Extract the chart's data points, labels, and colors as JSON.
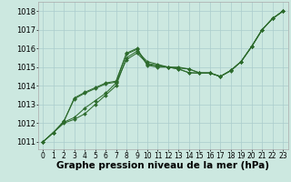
{
  "background_color": "#cce8e0",
  "grid_color": "#aacccc",
  "line_color": "#2d6b2d",
  "marker_color": "#2d6b2d",
  "xlabel": "Graphe pression niveau de la mer (hPa)",
  "xlabel_fontsize": 7.5,
  "ylabel_fontsize": 6,
  "tick_fontsize": 5.5,
  "xlim": [
    -0.5,
    23.5
  ],
  "ylim": [
    1010.6,
    1018.5
  ],
  "yticks": [
    1011,
    1012,
    1013,
    1014,
    1015,
    1016,
    1017,
    1018
  ],
  "xticks": [
    0,
    1,
    2,
    3,
    4,
    5,
    6,
    7,
    8,
    9,
    10,
    11,
    12,
    13,
    14,
    15,
    16,
    17,
    18,
    19,
    20,
    21,
    22,
    23
  ],
  "line1_x": [
    0,
    1,
    2,
    3,
    4,
    5,
    6,
    7,
    8,
    9,
    10,
    11,
    12,
    13,
    14,
    15,
    16,
    17,
    18,
    19,
    20,
    21,
    22,
    23
  ],
  "line1_y": [
    1011.0,
    1011.5,
    1012.0,
    1012.2,
    1012.5,
    1013.0,
    1013.5,
    1014.0,
    1015.5,
    1015.85,
    1015.3,
    1015.15,
    1015.0,
    1015.0,
    1014.9,
    1014.7,
    1014.7,
    1014.5,
    1014.8,
    1015.3,
    1016.1,
    1017.0,
    1017.6,
    1018.0
  ],
  "line2_x": [
    0,
    1,
    2,
    3,
    4,
    5,
    6,
    7,
    8,
    9,
    10,
    11,
    12,
    13,
    14,
    15,
    16,
    17,
    18,
    19,
    20,
    21,
    22,
    23
  ],
  "line2_y": [
    1011.0,
    1011.5,
    1012.05,
    1012.3,
    1012.8,
    1013.2,
    1013.6,
    1014.15,
    1015.4,
    1015.75,
    1015.2,
    1015.1,
    1015.0,
    1014.95,
    1014.9,
    1014.68,
    1014.68,
    1014.5,
    1014.82,
    1015.3,
    1016.1,
    1017.0,
    1017.6,
    1018.0
  ],
  "line3_x": [
    0,
    1,
    2,
    3,
    4,
    5,
    6,
    7,
    8,
    9,
    10,
    11,
    12,
    13,
    14,
    15,
    16,
    17,
    18,
    19,
    20,
    21,
    22,
    23
  ],
  "line3_y": [
    1011.0,
    1011.5,
    1012.1,
    1013.3,
    1013.6,
    1013.85,
    1014.1,
    1014.2,
    1015.7,
    1015.95,
    1015.1,
    1015.0,
    1015.0,
    1014.9,
    1014.7,
    1014.68,
    1014.68,
    1014.5,
    1014.82,
    1015.3,
    1016.1,
    1017.0,
    1017.6,
    1018.0
  ],
  "line4_x": [
    0,
    1,
    2,
    3,
    4,
    5,
    6,
    7,
    8,
    9,
    10,
    11,
    12,
    13,
    14,
    15,
    16,
    17,
    18,
    19,
    20,
    21,
    22,
    23
  ],
  "line4_y": [
    1011.0,
    1011.5,
    1012.1,
    1013.35,
    1013.65,
    1013.9,
    1014.15,
    1014.25,
    1015.75,
    1016.0,
    1015.15,
    1015.05,
    1015.0,
    1014.9,
    1014.7,
    1014.68,
    1014.68,
    1014.5,
    1014.82,
    1015.3,
    1016.1,
    1017.0,
    1017.6,
    1018.0
  ]
}
